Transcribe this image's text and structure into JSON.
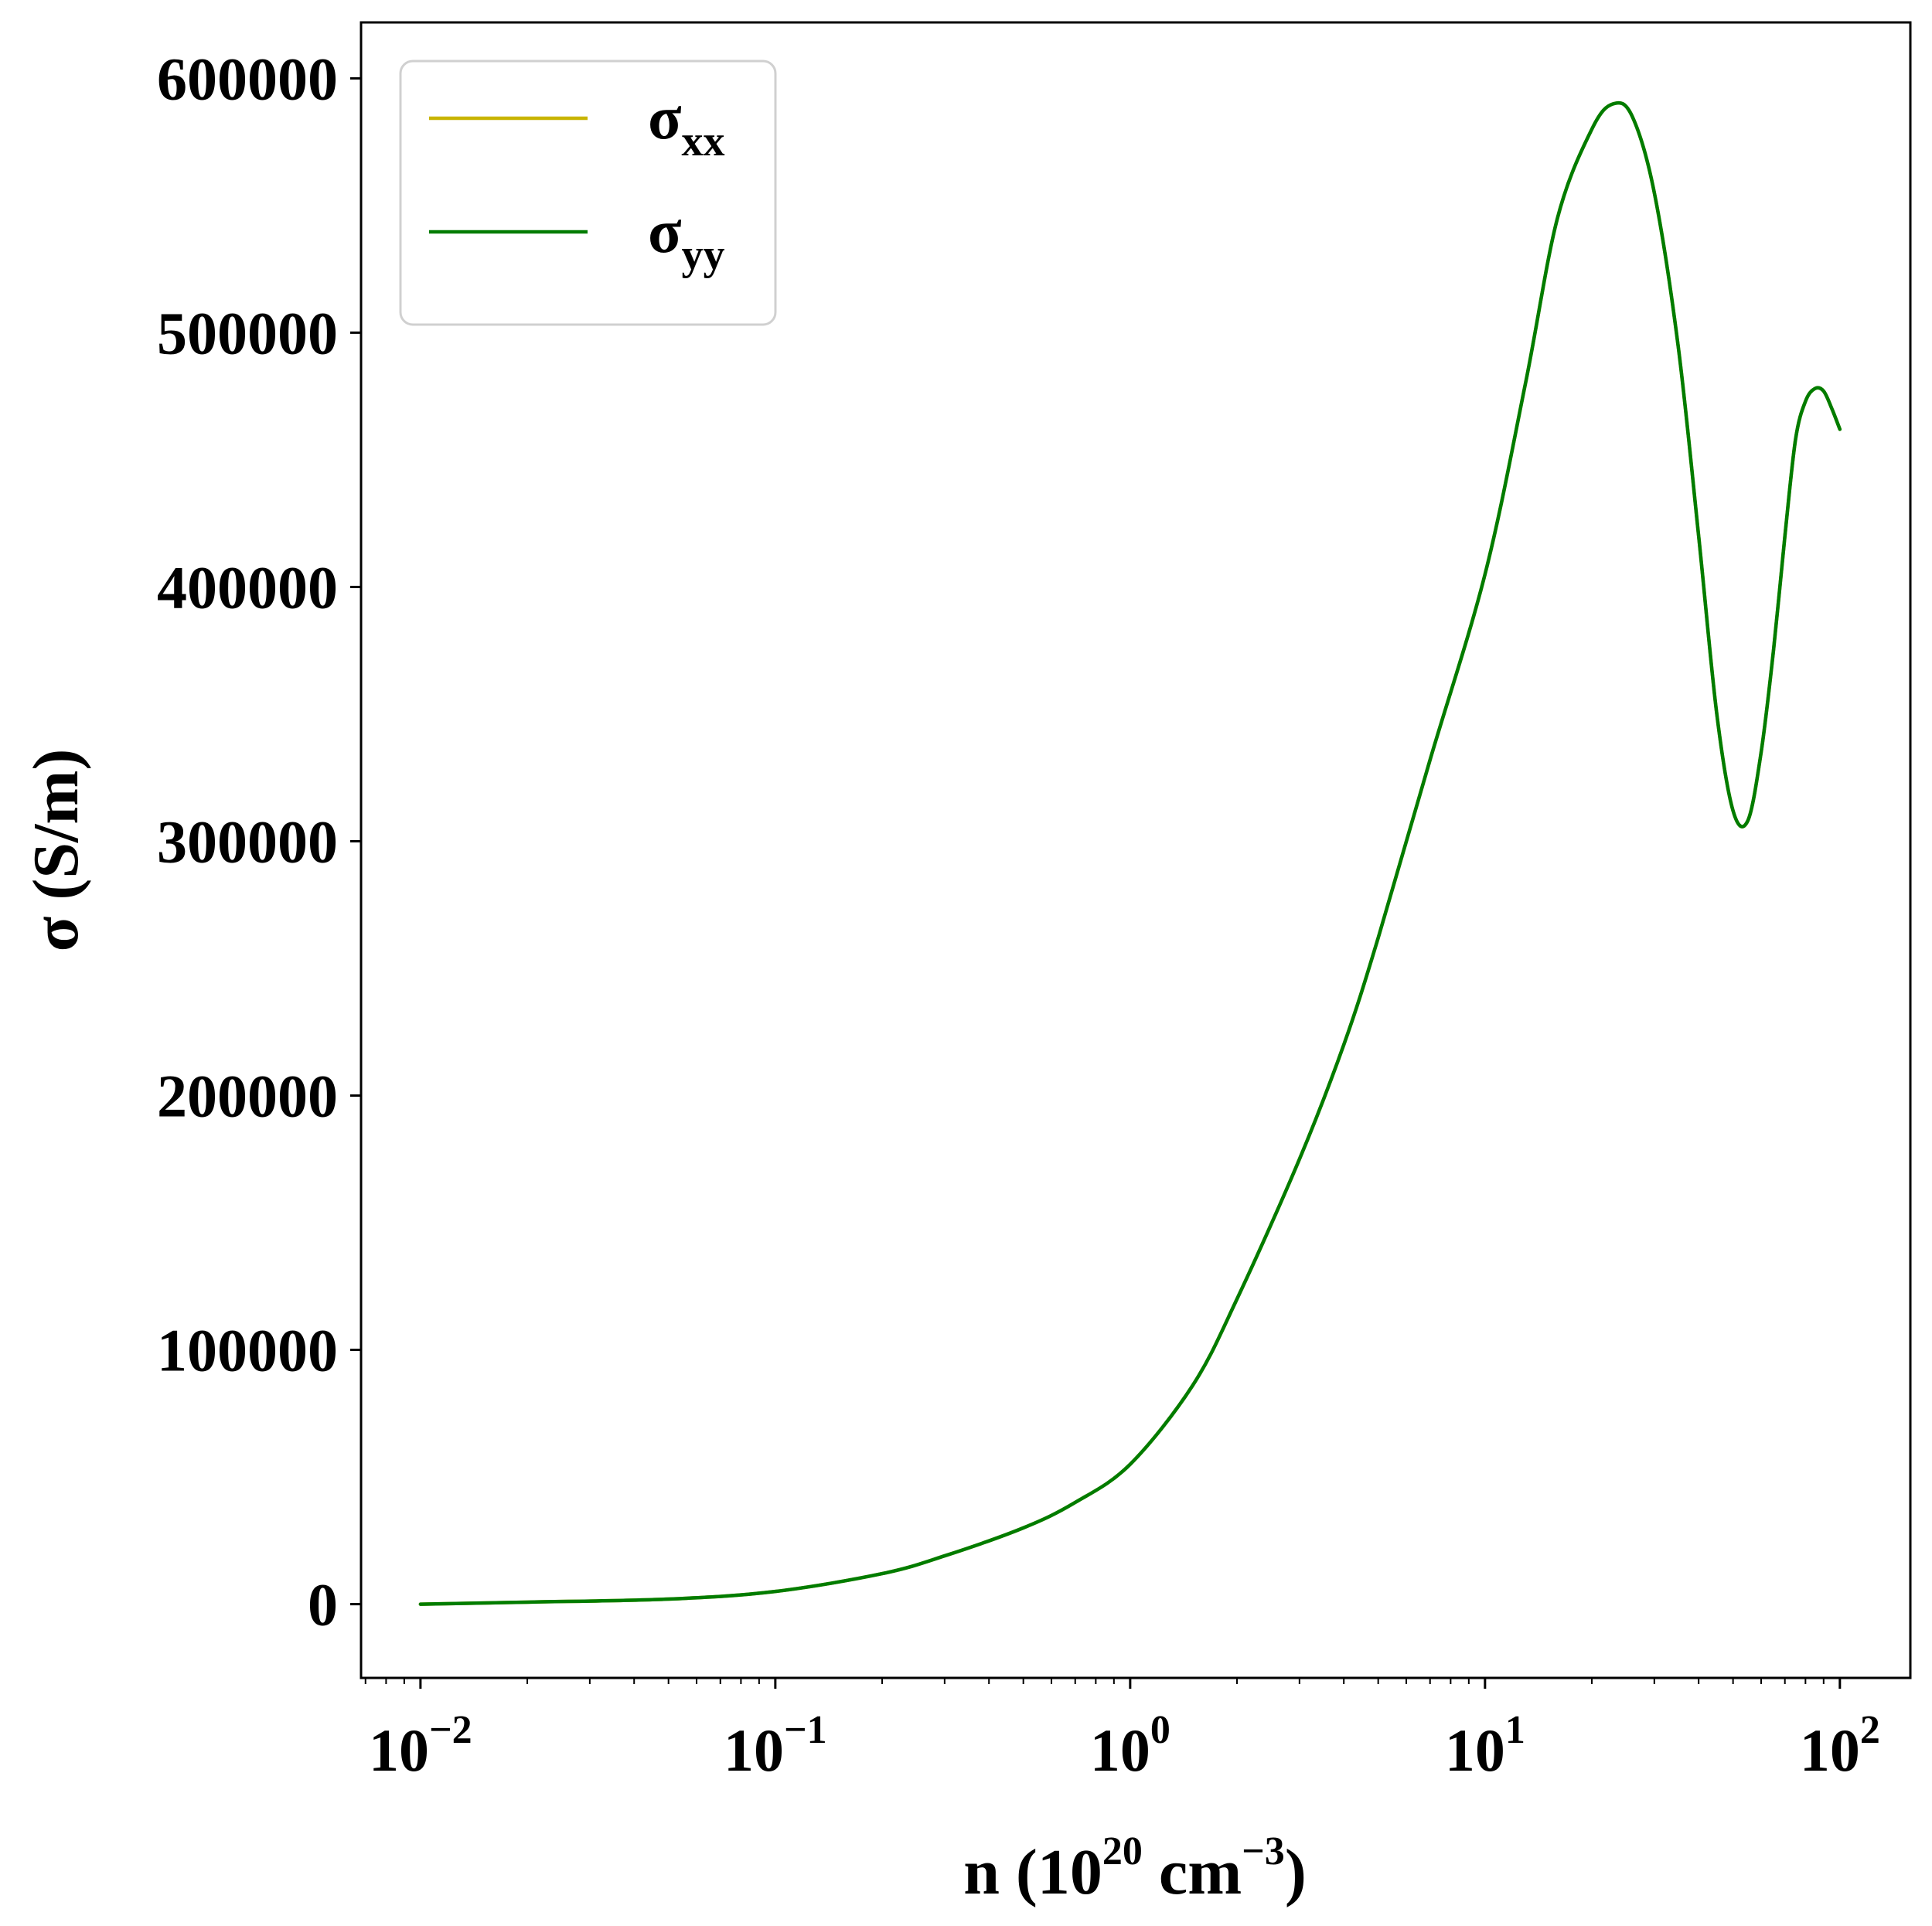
{
  "chart_data": {
    "type": "line",
    "x_scale": "log",
    "xlim": [
      0.0068,
      158
    ],
    "ylim": [
      -29000,
      622000
    ],
    "x_ticks": [
      {
        "value": 0.01,
        "base": "10",
        "exp": "−2"
      },
      {
        "value": 0.1,
        "base": "10",
        "exp": "−1"
      },
      {
        "value": 1,
        "base": "10",
        "exp": "0"
      },
      {
        "value": 10,
        "base": "10",
        "exp": "1"
      },
      {
        "value": 100,
        "base": "10",
        "exp": "2"
      }
    ],
    "y_ticks": [
      {
        "value": 0,
        "label": "0"
      },
      {
        "value": 100000,
        "label": "100000"
      },
      {
        "value": 200000,
        "label": "200000"
      },
      {
        "value": 300000,
        "label": "300000"
      },
      {
        "value": 400000,
        "label": "400000"
      },
      {
        "value": 500000,
        "label": "500000"
      },
      {
        "value": 600000,
        "label": "600000"
      }
    ],
    "xlabel": {
      "main": "n (10",
      "sup1": "20",
      "mid": " cm",
      "sup2": "−3",
      "end": ")"
    },
    "ylabel": "σ (S/m)",
    "grid": false,
    "legend": {
      "placement": "top-left"
    },
    "series": [
      {
        "name": {
          "base": "σ",
          "sub": "xx"
        },
        "color": "#c8b400",
        "x": [
          0.01,
          0.02,
          0.05,
          0.1,
          0.2,
          0.3,
          0.5,
          0.7,
          1,
          1.5,
          2,
          3,
          4,
          5,
          7,
          10,
          13,
          16,
          20,
          23,
          26,
          30,
          35,
          40,
          45,
          50,
          55,
          60,
          65,
          70,
          75,
          80,
          85,
          90,
          95,
          100
        ],
        "y": [
          0,
          800,
          2000,
          5000,
          12000,
          19000,
          30000,
          40000,
          55000,
          86000,
          120000,
          175000,
          220000,
          262000,
          332000,
          405000,
          480000,
          545000,
          580000,
          590000,
          585000,
          555000,
          495000,
          420000,
          350000,
          312000,
          308000,
          335000,
          375000,
          420000,
          458000,
          473000,
          478000,
          477000,
          470000,
          462000
        ]
      },
      {
        "name": {
          "base": "σ",
          "sub": "yy"
        },
        "color": "#007c00",
        "x": [
          0.01,
          0.02,
          0.05,
          0.1,
          0.2,
          0.3,
          0.5,
          0.7,
          1,
          1.5,
          2,
          3,
          4,
          5,
          7,
          10,
          13,
          16,
          20,
          23,
          26,
          30,
          35,
          40,
          45,
          50,
          55,
          60,
          65,
          70,
          75,
          80,
          85,
          90,
          95,
          100
        ],
        "y": [
          0,
          800,
          2000,
          5000,
          12000,
          19000,
          30000,
          40000,
          55000,
          86000,
          120000,
          175000,
          220000,
          262000,
          332000,
          405000,
          480000,
          545000,
          580000,
          590000,
          585000,
          555000,
          495000,
          420000,
          350000,
          312000,
          308000,
          335000,
          375000,
          420000,
          458000,
          473000,
          478000,
          477000,
          470000,
          462000
        ]
      }
    ]
  }
}
